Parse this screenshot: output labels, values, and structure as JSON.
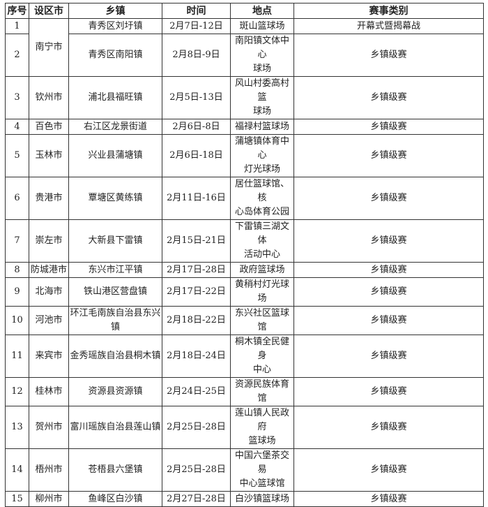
{
  "headers": [
    "序号",
    "设区市",
    "乡镇",
    "时间",
    "地点",
    "赛事类别"
  ],
  "rows": [
    {
      "no": "1",
      "city": "南宁市",
      "town": "青秀区刘圩镇",
      "time": "2月7日-12日",
      "place": "斑山篮球场",
      "type": "开幕式暨揭幕战"
    },
    {
      "no": "2",
      "city": "南宁市",
      "town": "青秀区南阳镇",
      "time": "2月8日-9日",
      "place": "南阳镇文体中心\n球场",
      "type": "乡镇级赛"
    },
    {
      "no": "3",
      "city": "钦州市",
      "town": "浦北县福旺镇",
      "time": "2月5日-13日",
      "place": "风山村委高村篮\n球场",
      "type": "乡镇级赛"
    },
    {
      "no": "4",
      "city": "百色市",
      "town": "右江区龙景街道",
      "time": "2月6日-8日",
      "place": "福禄村篮球场",
      "type": "乡镇级赛"
    },
    {
      "no": "5",
      "city": "玉林市",
      "town": "兴业县蒲塘镇",
      "time": "2月6日-18日",
      "place": "蒲塘镇体育中心\n灯光球场",
      "type": "乡镇级赛"
    },
    {
      "no": "6",
      "city": "贵港市",
      "town": "覃塘区黄练镇",
      "time": "2月11日-16日",
      "place": "居仕篮球馆、核\n心岛体育公园",
      "type": "乡镇级赛"
    },
    {
      "no": "7",
      "city": "崇左市",
      "town": "大新县下雷镇",
      "time": "2月15日-21日",
      "place": "下雷镇三湖文体\n活动中心",
      "type": "乡镇级赛"
    },
    {
      "no": "8",
      "city": "防城港市",
      "town": "东兴市江平镇",
      "time": "2月17日-28日",
      "place": "政府篮球场",
      "type": "乡镇级赛"
    },
    {
      "no": "9",
      "city": "北海市",
      "town": "铁山港区营盘镇",
      "time": "2月17日-22日",
      "place": "黄稍村灯光球场",
      "type": "乡镇级赛"
    },
    {
      "no": "10",
      "city": "河池市",
      "town": "环江毛南族自治县东兴镇",
      "time": "2月18日-22日",
      "place": "东兴社区篮球馆",
      "type": "乡镇级赛"
    },
    {
      "no": "11",
      "city": "来宾市",
      "town": "金秀瑶族自治县桐木镇",
      "time": "2月18日-24日",
      "place": "桐木镇全民健身\n中心",
      "type": "乡镇级赛"
    },
    {
      "no": "12",
      "city": "桂林市",
      "town": "资源县资源镇",
      "time": "2月24日-25日",
      "place": "资源民族体育馆",
      "type": "乡镇级赛"
    },
    {
      "no": "13",
      "city": "贺州市",
      "town": "富川瑶族自治县莲山镇",
      "time": "2月25日-28日",
      "place": "莲山镇人民政府\n篮球场",
      "type": "乡镇级赛"
    },
    {
      "no": "14",
      "city": "梧州市",
      "town": "苍梧县六堡镇",
      "time": "2月25日-28日",
      "place": "中国六堡茶交易\n中心篮球馆",
      "type": "乡镇级赛"
    },
    {
      "no": "15",
      "city": "柳州市",
      "town": "鱼峰区白沙镇",
      "time": "2月27日-28日",
      "place": "白沙镇篮球场",
      "type": "乡镇级赛"
    }
  ]
}
